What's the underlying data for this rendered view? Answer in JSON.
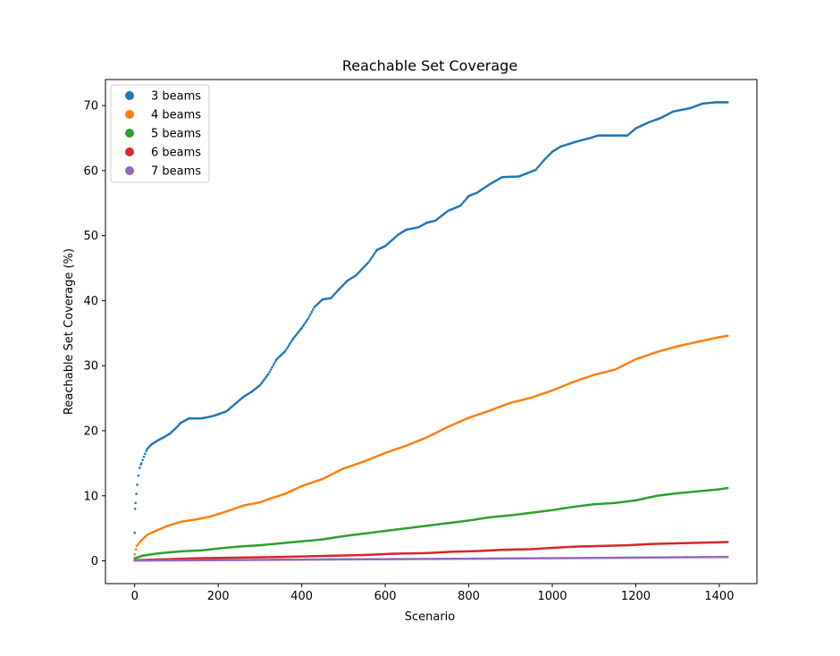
{
  "chart_data": {
    "type": "scatter",
    "title": "Reachable Set Coverage",
    "xlabel": "Scenario",
    "ylabel": "Reachable Set Coverage (%)",
    "xlim": [
      -70,
      1490
    ],
    "ylim": [
      -3.5,
      74
    ],
    "xticks": [
      0,
      200,
      400,
      600,
      800,
      1000,
      1200,
      1400
    ],
    "yticks": [
      0,
      10,
      20,
      30,
      40,
      50,
      60,
      70
    ],
    "grid": false,
    "legend_position": "top-left",
    "series": [
      {
        "name": "3 beams",
        "color": "#1f77b4",
        "points": [
          [
            0,
            4.3
          ],
          [
            1,
            8
          ],
          [
            2,
            8.9
          ],
          [
            4,
            10.3
          ],
          [
            6,
            11.7
          ],
          [
            9,
            13.1
          ],
          [
            12,
            14.3
          ],
          [
            16,
            15
          ],
          [
            22,
            16
          ],
          [
            30,
            17.2
          ],
          [
            40,
            17.9
          ],
          [
            55,
            18.5
          ],
          [
            70,
            19
          ],
          [
            85,
            19.6
          ],
          [
            100,
            20.5
          ],
          [
            110,
            21.2
          ],
          [
            130,
            21.9
          ],
          [
            160,
            21.9
          ],
          [
            190,
            22.3
          ],
          [
            220,
            23
          ],
          [
            240,
            24.1
          ],
          [
            260,
            25.2
          ],
          [
            280,
            26
          ],
          [
            300,
            27
          ],
          [
            320,
            28.7
          ],
          [
            340,
            31
          ],
          [
            360,
            32.2
          ],
          [
            380,
            34.2
          ],
          [
            400,
            35.8
          ],
          [
            415,
            37.2
          ],
          [
            430,
            39
          ],
          [
            450,
            40.2
          ],
          [
            470,
            40.4
          ],
          [
            490,
            41.8
          ],
          [
            510,
            43.1
          ],
          [
            530,
            43.9
          ],
          [
            560,
            45.9
          ],
          [
            580,
            47.8
          ],
          [
            600,
            48.4
          ],
          [
            630,
            50.1
          ],
          [
            650,
            50.9
          ],
          [
            680,
            51.3
          ],
          [
            700,
            52
          ],
          [
            720,
            52.3
          ],
          [
            750,
            53.8
          ],
          [
            780,
            54.6
          ],
          [
            800,
            56.1
          ],
          [
            820,
            56.6
          ],
          [
            850,
            57.9
          ],
          [
            880,
            59
          ],
          [
            920,
            59.1
          ],
          [
            960,
            60.1
          ],
          [
            980,
            61.6
          ],
          [
            1000,
            62.9
          ],
          [
            1020,
            63.7
          ],
          [
            1060,
            64.5
          ],
          [
            1090,
            65
          ],
          [
            1110,
            65.4
          ],
          [
            1150,
            65.4
          ],
          [
            1180,
            65.4
          ],
          [
            1200,
            66.5
          ],
          [
            1230,
            67.4
          ],
          [
            1260,
            68.1
          ],
          [
            1290,
            69.1
          ],
          [
            1330,
            69.6
          ],
          [
            1360,
            70.3
          ],
          [
            1390,
            70.5
          ],
          [
            1420,
            70.5
          ]
        ]
      },
      {
        "name": "4 beams",
        "color": "#ff7f0e",
        "points": [
          [
            0,
            1
          ],
          [
            5,
            2.3
          ],
          [
            15,
            3.1
          ],
          [
            30,
            4
          ],
          [
            50,
            4.6
          ],
          [
            80,
            5.4
          ],
          [
            110,
            6
          ],
          [
            150,
            6.4
          ],
          [
            180,
            6.8
          ],
          [
            220,
            7.6
          ],
          [
            260,
            8.5
          ],
          [
            300,
            9
          ],
          [
            330,
            9.7
          ],
          [
            360,
            10.3
          ],
          [
            400,
            11.5
          ],
          [
            450,
            12.6
          ],
          [
            500,
            14.2
          ],
          [
            550,
            15.3
          ],
          [
            600,
            16.6
          ],
          [
            650,
            17.7
          ],
          [
            700,
            19
          ],
          [
            750,
            20.6
          ],
          [
            800,
            22
          ],
          [
            850,
            23.1
          ],
          [
            900,
            24.3
          ],
          [
            950,
            25.1
          ],
          [
            1000,
            26.2
          ],
          [
            1050,
            27.5
          ],
          [
            1100,
            28.6
          ],
          [
            1150,
            29.4
          ],
          [
            1200,
            31
          ],
          [
            1250,
            32.1
          ],
          [
            1300,
            33
          ],
          [
            1350,
            33.7
          ],
          [
            1400,
            34.4
          ],
          [
            1420,
            34.6
          ]
        ]
      },
      {
        "name": "5 beams",
        "color": "#2ca02c",
        "points": [
          [
            0,
            0.4
          ],
          [
            20,
            0.8
          ],
          [
            50,
            1.1
          ],
          [
            80,
            1.3
          ],
          [
            120,
            1.5
          ],
          [
            160,
            1.6
          ],
          [
            200,
            1.9
          ],
          [
            250,
            2.2
          ],
          [
            300,
            2.4
          ],
          [
            350,
            2.7
          ],
          [
            400,
            3
          ],
          [
            450,
            3.3
          ],
          [
            500,
            3.8
          ],
          [
            550,
            4.2
          ],
          [
            600,
            4.6
          ],
          [
            650,
            5
          ],
          [
            700,
            5.4
          ],
          [
            750,
            5.8
          ],
          [
            800,
            6.2
          ],
          [
            850,
            6.7
          ],
          [
            900,
            7
          ],
          [
            950,
            7.4
          ],
          [
            1000,
            7.8
          ],
          [
            1050,
            8.3
          ],
          [
            1100,
            8.7
          ],
          [
            1150,
            8.9
          ],
          [
            1200,
            9.3
          ],
          [
            1250,
            10
          ],
          [
            1300,
            10.4
          ],
          [
            1350,
            10.7
          ],
          [
            1400,
            11
          ],
          [
            1420,
            11.2
          ]
        ]
      },
      {
        "name": "6 beams",
        "color": "#d62728",
        "points": [
          [
            0,
            0.1
          ],
          [
            50,
            0.2
          ],
          [
            100,
            0.3
          ],
          [
            150,
            0.4
          ],
          [
            250,
            0.5
          ],
          [
            350,
            0.6
          ],
          [
            420,
            0.7
          ],
          [
            480,
            0.8
          ],
          [
            550,
            0.9
          ],
          [
            620,
            1.1
          ],
          [
            700,
            1.2
          ],
          [
            760,
            1.4
          ],
          [
            820,
            1.5
          ],
          [
            880,
            1.7
          ],
          [
            950,
            1.8
          ],
          [
            1000,
            2
          ],
          [
            1060,
            2.2
          ],
          [
            1120,
            2.3
          ],
          [
            1180,
            2.4
          ],
          [
            1240,
            2.6
          ],
          [
            1300,
            2.7
          ],
          [
            1360,
            2.8
          ],
          [
            1420,
            2.9
          ]
        ]
      },
      {
        "name": "7 beams",
        "color": "#9467bd",
        "points": [
          [
            0,
            0.05
          ],
          [
            150,
            0.1
          ],
          [
            300,
            0.15
          ],
          [
            420,
            0.2
          ],
          [
            560,
            0.25
          ],
          [
            720,
            0.3
          ],
          [
            850,
            0.35
          ],
          [
            970,
            0.4
          ],
          [
            1100,
            0.45
          ],
          [
            1200,
            0.5
          ],
          [
            1300,
            0.55
          ],
          [
            1420,
            0.6
          ]
        ]
      }
    ]
  }
}
